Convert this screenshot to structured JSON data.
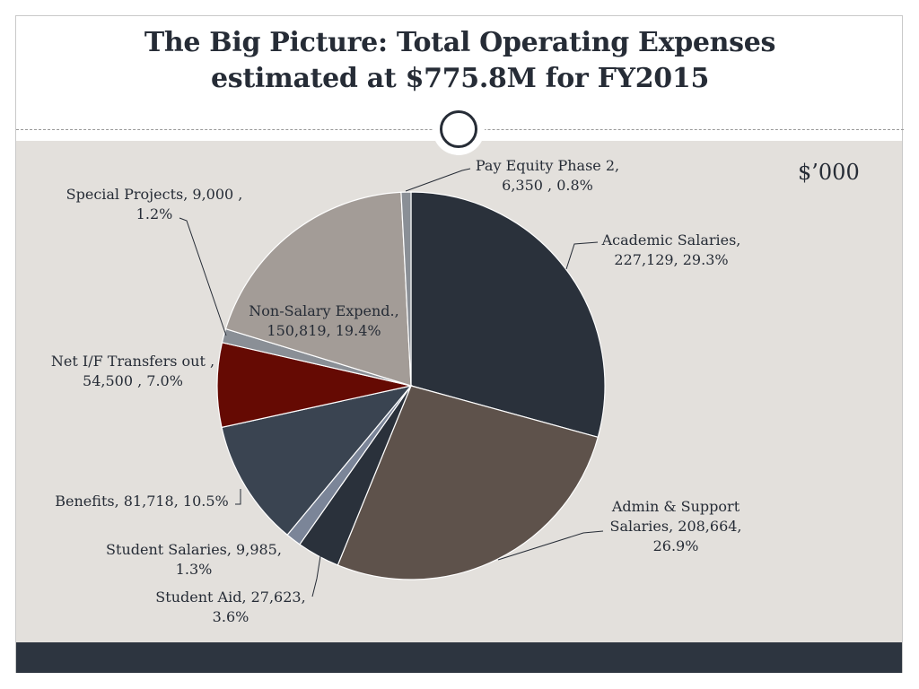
{
  "slide": {
    "title_line1": "The Big Picture:  Total Operating Expenses",
    "title_line2": "estimated at $775.8M for FY2015",
    "units_label": "$’000",
    "badge_icon": "circle-ring-icon"
  },
  "chart_data": {
    "type": "pie",
    "start_angle_deg": 0,
    "direction": "clockwise",
    "slices": [
      {
        "name": "Academic Salaries",
        "value": 227129,
        "percent": "29.3%",
        "color": "#2a313b",
        "label_lines": [
          "Academic Salaries,",
          "227,129, 29.3%"
        ]
      },
      {
        "name": "Admin & Support Salaries",
        "value": 208664,
        "percent": "26.9%",
        "color": "#5e524b",
        "label_lines": [
          "Admin & Support",
          "Salaries, 208,664,",
          "26.9%"
        ]
      },
      {
        "name": "Student Aid",
        "value": 27623,
        "percent": "3.6%",
        "color": "#2a313b",
        "label_lines": [
          "Student Aid, 27,623,",
          "3.6%"
        ]
      },
      {
        "name": "Student Salaries",
        "value": 9985,
        "percent": "1.3%",
        "color": "#7b8598",
        "label_lines": [
          "Student Salaries, 9,985,",
          "1.3%"
        ]
      },
      {
        "name": "Benefits",
        "value": 81718,
        "percent": "10.5%",
        "color": "#3a4451",
        "label_lines": [
          "Benefits, 81,718, 10.5%"
        ]
      },
      {
        "name": "Net I/F Transfers out",
        "value": 54500,
        "percent": "7.0%",
        "color": "#650a03",
        "label_lines": [
          "Net I/F Transfers out ,",
          "54,500 , 7.0%"
        ]
      },
      {
        "name": "Special Projects",
        "value": 9000,
        "percent": "1.2%",
        "color": "#8a8f96",
        "label_lines": [
          "Special Projects, 9,000 ,",
          "1.2%"
        ]
      },
      {
        "name": "Non-Salary Expend.",
        "value": 150819,
        "percent": "19.4%",
        "color": "#a39c97",
        "label_lines": [
          "Non-Salary Expend.,",
          "150,819, 19.4%"
        ]
      },
      {
        "name": "Pay Equity Phase 2",
        "value": 6350,
        "percent": "0.8%",
        "color": "#8a8f96",
        "label_lines": [
          "Pay Equity Phase 2,",
          "6,350 , 0.8%"
        ]
      }
    ]
  }
}
